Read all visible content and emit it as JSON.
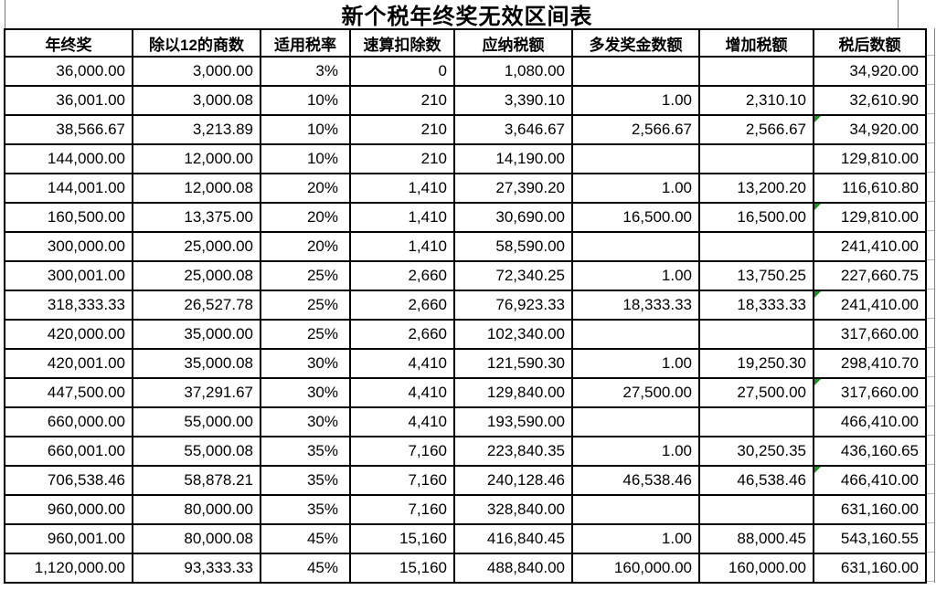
{
  "title": "新个税年终奖无效区间表",
  "colors": {
    "red_accent": "#fe0000",
    "error_indicator_green": "#1f8f1f",
    "border": "#000000"
  },
  "table": {
    "col_keys": [
      "year-end-bonus",
      "quotient-div-12",
      "tax-rate",
      "quick-deduction",
      "tax-payable",
      "extra-bonus-amount",
      "added-tax",
      "after-tax-amount"
    ],
    "headers": [
      "年终奖",
      "除以12的商数",
      "适用税率",
      "速算扣除数",
      "应纳税额",
      "多发奖金数额",
      "增加税额",
      "税后数额"
    ],
    "red_header_index": 6,
    "red_column_index": 6,
    "rows": [
      {
        "cells": [
          "36,000.00",
          "3,000.00",
          "3%",
          "0",
          "1,080.00",
          "",
          "",
          "34,920.00"
        ],
        "marker": false
      },
      {
        "cells": [
          "36,001.00",
          "3,000.08",
          "10%",
          "210",
          "3,390.10",
          "1.00",
          "2,310.10",
          "32,610.90"
        ],
        "marker": false
      },
      {
        "cells": [
          "38,566.67",
          "3,213.89",
          "10%",
          "210",
          "3,646.67",
          "2,566.67",
          "2,566.67",
          "34,920.00"
        ],
        "marker": true
      },
      {
        "cells": [
          "144,000.00",
          "12,000.00",
          "10%",
          "210",
          "14,190.00",
          "",
          "",
          "129,810.00"
        ],
        "marker": false
      },
      {
        "cells": [
          "144,001.00",
          "12,000.08",
          "20%",
          "1,410",
          "27,390.20",
          "1.00",
          "13,200.20",
          "116,610.80"
        ],
        "marker": false
      },
      {
        "cells": [
          "160,500.00",
          "13,375.00",
          "20%",
          "1,410",
          "30,690.00",
          "16,500.00",
          "16,500.00",
          "129,810.00"
        ],
        "marker": true
      },
      {
        "cells": [
          "300,000.00",
          "25,000.00",
          "20%",
          "1,410",
          "58,590.00",
          "",
          "",
          "241,410.00"
        ],
        "marker": false
      },
      {
        "cells": [
          "300,001.00",
          "25,000.08",
          "25%",
          "2,660",
          "72,340.25",
          "1.00",
          "13,750.25",
          "227,660.75"
        ],
        "marker": false
      },
      {
        "cells": [
          "318,333.33",
          "26,527.78",
          "25%",
          "2,660",
          "76,923.33",
          "18,333.33",
          "18,333.33",
          "241,410.00"
        ],
        "marker": true
      },
      {
        "cells": [
          "420,000.00",
          "35,000.00",
          "25%",
          "2,660",
          "102,340.00",
          "",
          "",
          "317,660.00"
        ],
        "marker": false
      },
      {
        "cells": [
          "420,001.00",
          "35,000.08",
          "30%",
          "4,410",
          "121,590.30",
          "1.00",
          "19,250.30",
          "298,410.70"
        ],
        "marker": false
      },
      {
        "cells": [
          "447,500.00",
          "37,291.67",
          "30%",
          "4,410",
          "129,840.00",
          "27,500.00",
          "27,500.00",
          "317,660.00"
        ],
        "marker": true
      },
      {
        "cells": [
          "660,000.00",
          "55,000.00",
          "30%",
          "4,410",
          "193,590.00",
          "",
          "",
          "466,410.00"
        ],
        "marker": false
      },
      {
        "cells": [
          "660,001.00",
          "55,000.08",
          "35%",
          "7,160",
          "223,840.35",
          "1.00",
          "30,250.35",
          "436,160.65"
        ],
        "marker": false
      },
      {
        "cells": [
          "706,538.46",
          "58,878.21",
          "35%",
          "7,160",
          "240,128.46",
          "46,538.46",
          "46,538.46",
          "466,410.00"
        ],
        "marker": true
      },
      {
        "cells": [
          "960,000.00",
          "80,000.00",
          "35%",
          "7,160",
          "328,840.00",
          "",
          "",
          "631,160.00"
        ],
        "marker": false
      },
      {
        "cells": [
          "960,001.00",
          "80,000.08",
          "45%",
          "15,160",
          "416,840.45",
          "1.00",
          "88,000.45",
          "543,160.55"
        ],
        "marker": false
      },
      {
        "cells": [
          "1,120,000.00",
          "93,333.33",
          "45%",
          "15,160",
          "488,840.00",
          "160,000.00",
          "160,000.00",
          "631,160.00"
        ],
        "marker": false
      }
    ]
  }
}
